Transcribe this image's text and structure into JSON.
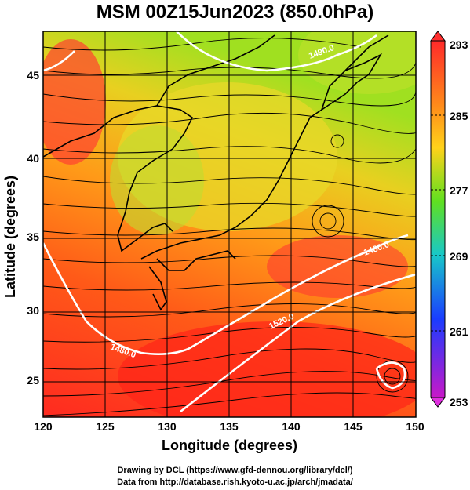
{
  "title": "MSM 00Z15Jun2023 (850.0hPa)",
  "x_axis": {
    "label": "Longitude (degrees)",
    "ticks": [
      "120",
      "125",
      "130",
      "135",
      "140",
      "145",
      "150"
    ]
  },
  "y_axis": {
    "label": "Latitude  (degrees)",
    "ticks": [
      "25",
      "30",
      "35",
      "40",
      "45"
    ]
  },
  "colorbar": {
    "labels": [
      "293",
      "285",
      "277",
      "269",
      "261",
      "253"
    ],
    "colors": [
      "#ff2020",
      "#ff7a1a",
      "#ffd21a",
      "#7fe020",
      "#18c8c8",
      "#1a3cff",
      "#c818c8"
    ]
  },
  "contour_labels": [
    "1490.0",
    "1480.0",
    "1520.0",
    "1480.0"
  ],
  "credits": {
    "line1": "Drawing by DCL (https://www.gfd-dennou.org/library/dcl/)",
    "line2": "Data from http://database.rish.kyoto-u.ac.jp/arch/jmadata/"
  }
}
